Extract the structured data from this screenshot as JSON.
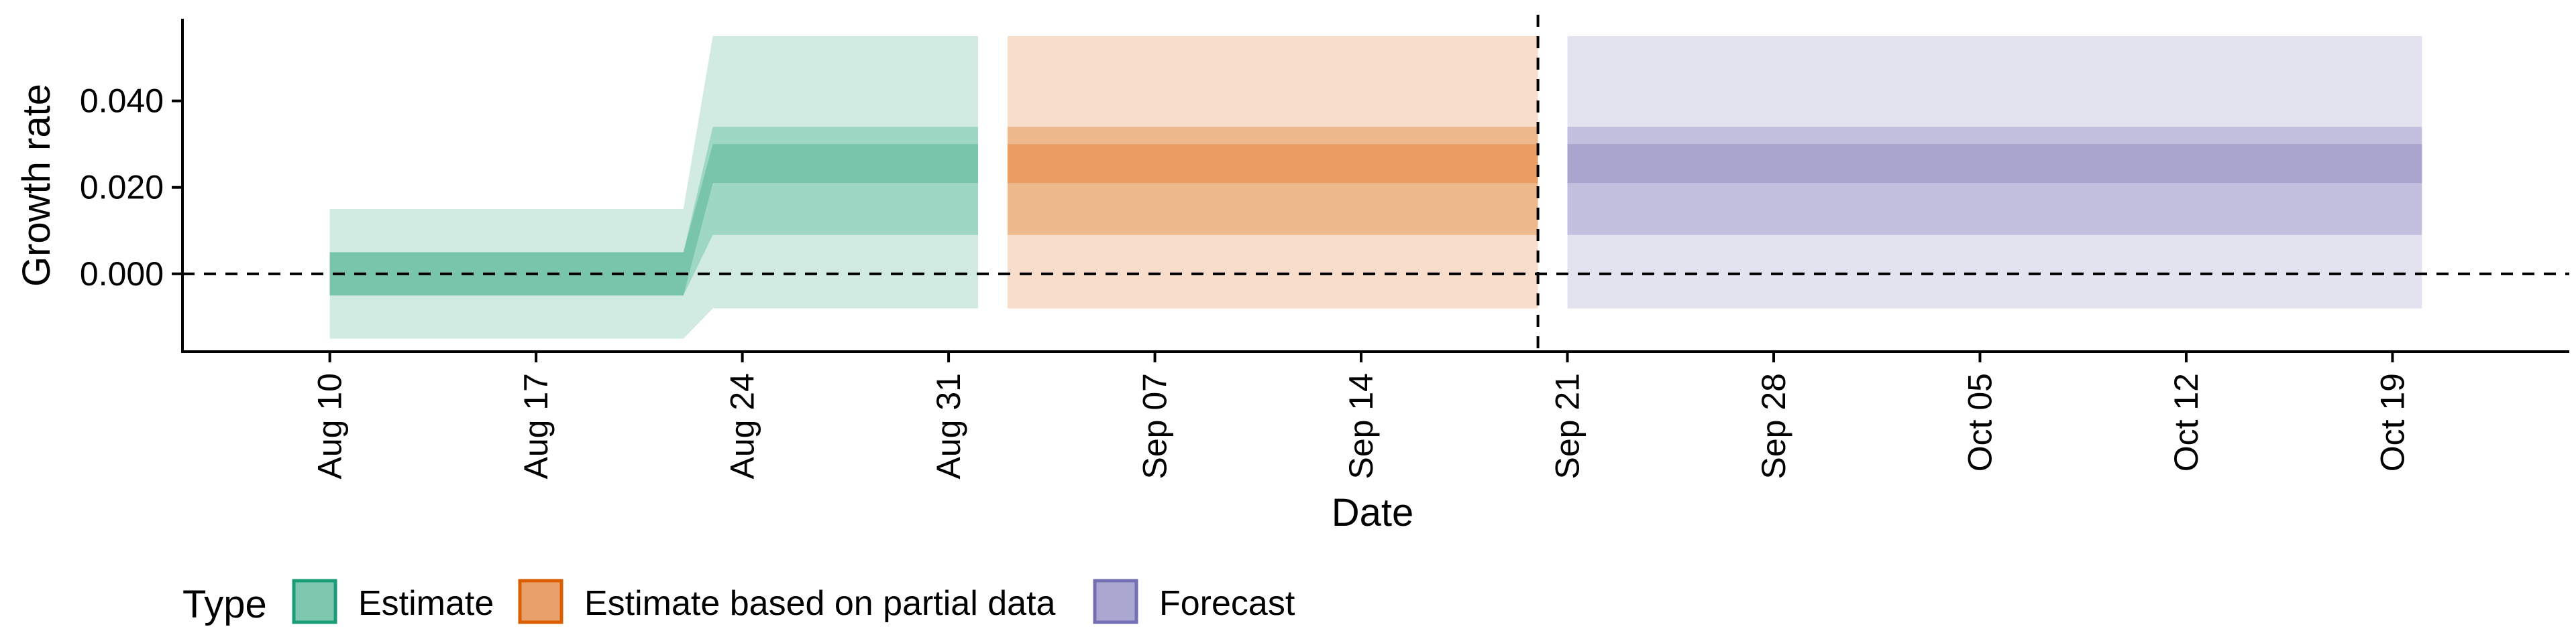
{
  "chart_data": {
    "type": "area",
    "title": "",
    "xlabel": "Date",
    "ylabel": "Growth rate",
    "x_type": "date",
    "xlim": [
      "2020-08-05",
      "2020-10-25"
    ],
    "ylim": [
      -0.018,
      0.059
    ],
    "x_ticks": [
      {
        "date": "2020-08-10",
        "label": "Aug 10"
      },
      {
        "date": "2020-08-17",
        "label": "Aug 17"
      },
      {
        "date": "2020-08-24",
        "label": "Aug 24"
      },
      {
        "date": "2020-08-31",
        "label": "Aug 31"
      },
      {
        "date": "2020-09-07",
        "label": "Sep 07"
      },
      {
        "date": "2020-09-14",
        "label": "Sep 14"
      },
      {
        "date": "2020-09-21",
        "label": "Sep 21"
      },
      {
        "date": "2020-09-28",
        "label": "Sep 28"
      },
      {
        "date": "2020-10-05",
        "label": "Oct 05"
      },
      {
        "date": "2020-10-12",
        "label": "Oct 12"
      },
      {
        "date": "2020-10-19",
        "label": "Oct 19"
      }
    ],
    "y_ticks": [
      {
        "value": 0.0,
        "label": "0.000"
      },
      {
        "value": 0.02,
        "label": "0.020"
      },
      {
        "value": 0.04,
        "label": "0.040"
      }
    ],
    "reference_lines": [
      {
        "axis": "y",
        "value": 0.0,
        "style": "dashed"
      },
      {
        "axis": "x",
        "date": "2020-09-20",
        "style": "dashed"
      }
    ],
    "legend": {
      "title": "Type",
      "position": "bottom",
      "entries": [
        {
          "label": "Estimate",
          "fill": "#7fc8b0",
          "stroke": "#1b9e77"
        },
        {
          "label": "Estimate based on partial data",
          "fill": "#eaa06a",
          "stroke": "#d95f02"
        },
        {
          "label": "Forecast",
          "fill": "#aaa8d0",
          "stroke": "#7570b3"
        }
      ]
    },
    "series": [
      {
        "name": "Estimate",
        "colors": {
          "outer": "#d1ebe3",
          "mid": "#9ed8c4",
          "inner": "#79c5ab"
        },
        "points": [
          {
            "date": "2020-08-10",
            "lower90": -0.015,
            "lower50": -0.005,
            "lower20": -0.005,
            "upper20": 0.005,
            "upper50": 0.005,
            "upper90": 0.015
          },
          {
            "date": "2020-08-22",
            "lower90": -0.015,
            "lower50": -0.005,
            "lower20": -0.005,
            "upper20": 0.005,
            "upper50": 0.005,
            "upper90": 0.015
          },
          {
            "date": "2020-08-23",
            "lower90": -0.008,
            "lower50": 0.009,
            "lower20": 0.021,
            "upper20": 0.03,
            "upper50": 0.034,
            "upper90": 0.055
          },
          {
            "date": "2020-09-01",
            "lower90": -0.008,
            "lower50": 0.009,
            "lower20": 0.021,
            "upper20": 0.03,
            "upper50": 0.034,
            "upper90": 0.055
          }
        ]
      },
      {
        "name": "Estimate based on partial data",
        "colors": {
          "outer": "#f7ddca",
          "mid": "#efb98e",
          "inner": "#ea9e64"
        },
        "points": [
          {
            "date": "2020-09-02",
            "lower90": -0.008,
            "lower50": 0.009,
            "lower20": 0.021,
            "upper20": 0.03,
            "upper50": 0.034,
            "upper90": 0.055
          },
          {
            "date": "2020-09-20",
            "lower90": -0.008,
            "lower50": 0.009,
            "lower20": 0.021,
            "upper20": 0.03,
            "upper50": 0.034,
            "upper90": 0.055
          }
        ]
      },
      {
        "name": "Forecast",
        "colors": {
          "outer": "#e3e3f0",
          "mid": "#c2bfdf",
          "inner": "#a9a5cf"
        },
        "points": [
          {
            "date": "2020-09-21",
            "lower90": -0.008,
            "lower50": 0.009,
            "lower20": 0.021,
            "upper20": 0.03,
            "upper50": 0.034,
            "upper90": 0.055
          },
          {
            "date": "2020-10-20",
            "lower90": -0.008,
            "lower50": 0.009,
            "lower20": 0.021,
            "upper20": 0.03,
            "upper50": 0.034,
            "upper90": 0.055
          }
        ]
      }
    ]
  }
}
